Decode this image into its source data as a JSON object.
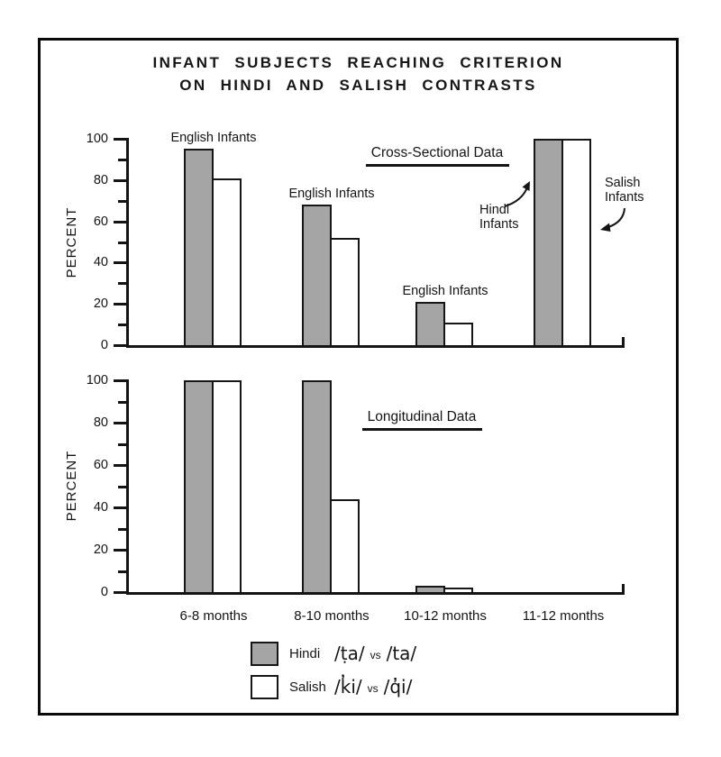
{
  "page": {
    "title_line1": "INFANT SUBJECTS REACHING CRITERION",
    "title_line2": "ON HINDI AND SALISH CONTRASTS"
  },
  "chart_data": [
    {
      "type": "bar",
      "panel": "top",
      "annotation": "Cross-Sectional Data",
      "ylabel": "PERCENT",
      "ylim": [
        0,
        100
      ],
      "yticks": [
        0,
        20,
        40,
        60,
        80,
        100
      ],
      "yticks_minor": [
        10,
        30,
        50,
        70,
        90
      ],
      "grid": false,
      "categories": [
        "6-8 months",
        "8-10 months",
        "10-12 months",
        "11-12 months"
      ],
      "series": [
        {
          "name": "Hindi",
          "values": [
            95,
            68,
            21,
            100
          ]
        },
        {
          "name": "Salish",
          "values": [
            81,
            52,
            11,
            100
          ]
        }
      ],
      "group_labels": [
        "English Infants",
        "English Infants",
        "English Infants",
        ""
      ],
      "callouts": [
        "Hindi Infants",
        "Salish Infants"
      ]
    },
    {
      "type": "bar",
      "panel": "bottom",
      "annotation": "Longitudinal Data",
      "ylabel": "PERCENT",
      "ylim": [
        0,
        100
      ],
      "yticks": [
        0,
        20,
        40,
        60,
        80,
        100
      ],
      "yticks_minor": [
        10,
        30,
        50,
        70,
        90
      ],
      "grid": false,
      "categories": [
        "6-8 months",
        "8-10 months",
        "10-12 months",
        "11-12 months"
      ],
      "series": [
        {
          "name": "Hindi",
          "values": [
            100,
            100,
            3,
            0
          ]
        },
        {
          "name": "Salish",
          "values": [
            100,
            44,
            2,
            0
          ]
        }
      ],
      "group_labels": [
        "",
        "",
        "",
        ""
      ],
      "callouts": []
    }
  ],
  "legend": {
    "items": [
      {
        "label": "Hindi",
        "swatch": "gray",
        "left": "/ṭa/",
        "vs": "vs",
        "right": "/ta/"
      },
      {
        "label": "Salish",
        "swatch": "white",
        "left": "/k̓i/",
        "vs": "vs",
        "right": "/q̓i/"
      }
    ]
  },
  "colors": {
    "hindi_bar": "#a5a5a5",
    "salish_bar": "#ffffff",
    "ink": "#141414"
  }
}
